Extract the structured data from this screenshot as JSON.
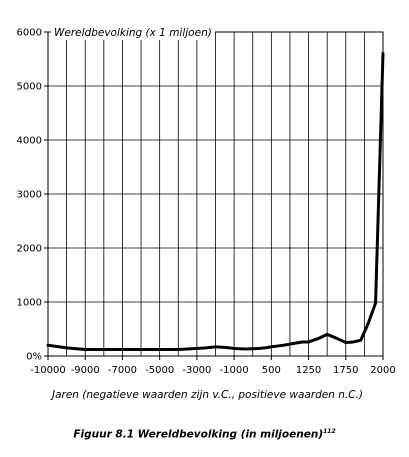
{
  "chart_data": {
    "type": "line",
    "ylabel": "Wereldbevolking (x 1 miljoen)",
    "xlabel": "Jaren (negatieve waarden zijn v.C., positieve waarden n.C.)",
    "x_tick_labels": [
      "-10000",
      "-9000",
      "-7000",
      "-5000",
      "-3000",
      "-1000",
      "500",
      "1250",
      "1750",
      "2000"
    ],
    "y_ticks": [
      0,
      1000,
      2000,
      3000,
      4000,
      5000,
      6000
    ],
    "y_tick_labels": [
      "0%",
      "1000",
      "2000",
      "3000",
      "4000",
      "5000",
      "6000"
    ],
    "ylim": [
      0,
      6000
    ],
    "grid": true,
    "series": [
      {
        "x": [
          "-10000",
          "-9500",
          "-9000",
          "-8500",
          "-8000",
          "-7500",
          "-7000",
          "-6500",
          "-6000",
          "-5500",
          "-5000",
          "-4500",
          "-4000",
          "-3500",
          "-3000",
          "-2500",
          "-2000",
          "-1500",
          "-1000",
          "-500",
          "0",
          "250",
          "500",
          "750",
          "1000",
          "1125",
          "1250",
          "1375",
          "1500",
          "1625",
          "1750",
          "1800",
          "1850",
          "1900",
          "1950",
          "2000"
        ],
        "values": [
          200,
          150,
          120,
          120,
          120,
          120,
          120,
          120,
          120,
          120,
          120,
          120,
          120,
          130,
          140,
          150,
          170,
          160,
          140,
          130,
          140,
          150,
          170,
          200,
          240,
          260,
          260,
          320,
          400,
          330,
          250,
          260,
          290,
          600,
          980,
          5600
        ]
      }
    ]
  },
  "caption": {
    "text": "Figuur 8.1 Wereldbevolking (in miljoenen)",
    "superscript": "112"
  }
}
